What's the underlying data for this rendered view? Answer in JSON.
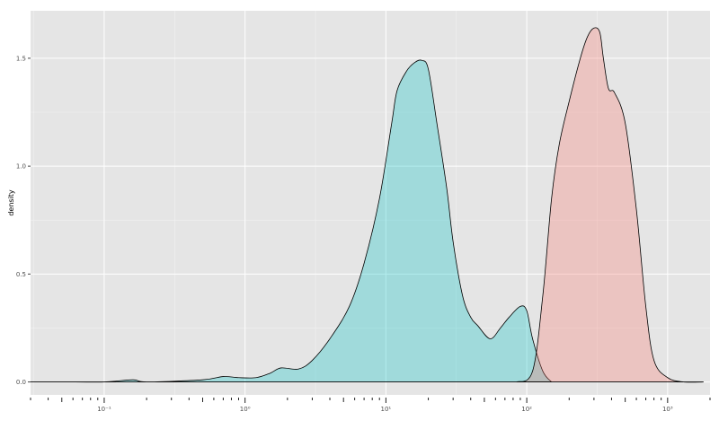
{
  "chart_data": {
    "type": "area",
    "title": "",
    "xlabel": "",
    "ylabel": "density",
    "x_scale": "log10",
    "xlim": [
      0.03,
      2000
    ],
    "ylim": [
      -0.06,
      1.72
    ],
    "grid": true,
    "background": "#e5e5e5",
    "grid_color": "#ffffff",
    "x_ticks": [
      {
        "value": 0.1,
        "label": "10⁻¹"
      },
      {
        "value": 1,
        "label": "10⁰"
      },
      {
        "value": 10,
        "label": "10¹"
      },
      {
        "value": 100,
        "label": "10²"
      },
      {
        "value": 1000,
        "label": "10³"
      }
    ],
    "y_ticks": [
      {
        "value": 0,
        "label": "0.0"
      },
      {
        "value": 0.5,
        "label": "0.5"
      },
      {
        "value": 1,
        "label": "1.0"
      },
      {
        "value": 1.5,
        "label": "1.5"
      }
    ],
    "series": [
      {
        "fill": "#00bfc4",
        "fill_opacity": 0.3,
        "x": [
          0.03,
          0.05,
          0.1,
          0.16,
          0.2,
          0.5,
          0.7,
          0.9,
          1.2,
          1.5,
          1.8,
          2.4,
          3.0,
          4.0,
          5.5,
          7.0,
          9.0,
          11,
          12,
          14,
          16,
          18,
          20,
          23,
          27,
          30,
          35,
          40,
          45,
          55,
          65,
          75,
          90,
          100,
          110,
          130,
          150
        ],
        "y": [
          0.0,
          0.0,
          0.0,
          0.01,
          0.0,
          0.01,
          0.025,
          0.02,
          0.02,
          0.04,
          0.065,
          0.06,
          0.1,
          0.2,
          0.35,
          0.55,
          0.85,
          1.2,
          1.35,
          1.44,
          1.48,
          1.49,
          1.45,
          1.2,
          0.9,
          0.65,
          0.4,
          0.3,
          0.26,
          0.2,
          0.25,
          0.3,
          0.35,
          0.33,
          0.2,
          0.05,
          0.0
        ]
      },
      {
        "fill": "#f8766d",
        "fill_opacity": 0.3,
        "x": [
          85,
          110,
          130,
          150,
          170,
          200,
          240,
          270,
          300,
          330,
          350,
          380,
          420,
          500,
          600,
          700,
          800,
          1000,
          1300,
          1800
        ],
        "y": [
          0.0,
          0.05,
          0.4,
          0.85,
          1.1,
          1.3,
          1.5,
          1.6,
          1.64,
          1.62,
          1.5,
          1.36,
          1.34,
          1.2,
          0.8,
          0.35,
          0.1,
          0.02,
          0.0,
          0.0
        ]
      }
    ]
  }
}
